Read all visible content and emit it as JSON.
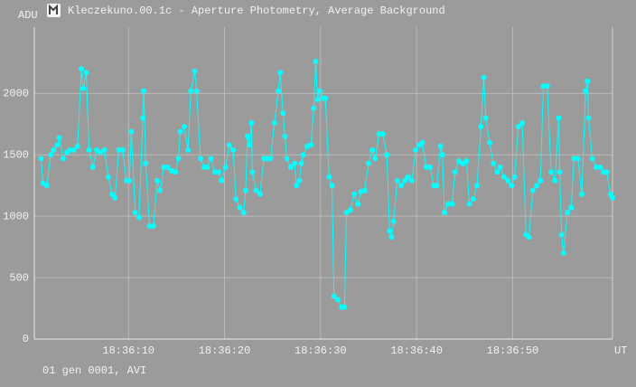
{
  "window_title": "Kleczekuno.00.1c - Aperture Photometry, Average Background",
  "footer": "01 gen 0001, AVI",
  "chart_data": {
    "type": "line",
    "y_label": "ADU",
    "x_label": "UT",
    "color": "#00ffff",
    "grid": true,
    "markers": true,
    "xlim": [
      0.2,
      60.4
    ],
    "ylim": [
      0,
      2540
    ],
    "xticks": [
      {
        "value": 10,
        "label": "18:36:10"
      },
      {
        "value": 20,
        "label": "18:36:20"
      },
      {
        "value": 30,
        "label": "18:36:30"
      },
      {
        "value": 40,
        "label": "18:36:40"
      },
      {
        "value": 50,
        "label": "18:36:50"
      }
    ],
    "yticks": [
      0,
      500,
      1000,
      1500,
      2000
    ],
    "x": [
      0.9,
      1.1,
      1.5,
      1.9,
      2.2,
      2.6,
      2.8,
      3.2,
      3.6,
      3.9,
      4.3,
      4.7,
      5.1,
      5.3,
      5.6,
      5.9,
      6.3,
      6.7,
      7.1,
      7.5,
      7.9,
      8.3,
      8.6,
      9.0,
      9.4,
      9.8,
      10.1,
      10.3,
      10.7,
      11.1,
      11.5,
      11.6,
      11.8,
      12.2,
      12.6,
      13.0,
      13.3,
      13.7,
      14.1,
      14.5,
      14.9,
      15.2,
      15.4,
      15.8,
      16.2,
      16.5,
      16.9,
      17.1,
      17.5,
      17.9,
      18.2,
      18.6,
      19.0,
      19.4,
      19.7,
      20.1,
      20.5,
      20.9,
      21.2,
      21.6,
      22.0,
      22.2,
      22.4,
      22.6,
      22.8,
      22.9,
      23.3,
      23.7,
      24.1,
      24.4,
      24.8,
      25.2,
      25.6,
      25.8,
      26.1,
      26.3,
      26.5,
      26.9,
      27.3,
      27.5,
      27.8,
      28.0,
      28.2,
      28.6,
      29.0,
      29.3,
      29.5,
      29.7,
      29.9,
      30.3,
      30.5,
      30.9,
      31.2,
      31.4,
      31.8,
      32.2,
      32.5,
      32.7,
      33.1,
      33.5,
      33.9,
      34.2,
      34.6,
      35.0,
      35.4,
      35.7,
      36.1,
      36.5,
      36.9,
      37.2,
      37.4,
      37.6,
      38.0,
      38.4,
      38.8,
      39.1,
      39.5,
      39.9,
      40.3,
      40.6,
      41.0,
      41.4,
      41.8,
      42.1,
      42.5,
      42.7,
      42.9,
      43.3,
      43.7,
      44.0,
      44.4,
      44.8,
      45.2,
      45.5,
      45.9,
      46.3,
      46.7,
      47.0,
      47.2,
      47.6,
      48.0,
      48.4,
      48.7,
      49.1,
      49.5,
      49.9,
      50.2,
      50.6,
      51.0,
      51.4,
      51.7,
      52.1,
      52.5,
      52.9,
      53.2,
      53.6,
      54.0,
      54.4,
      54.8,
      54.9,
      55.1,
      55.3,
      55.7,
      56.1,
      56.4,
      56.8,
      57.2,
      57.6,
      57.8,
      57.9,
      58.3,
      58.7,
      59.1,
      59.5,
      59.8,
      60.2,
      60.4
    ],
    "values": [
      1470,
      1270,
      1250,
      1500,
      1540,
      1580,
      1640,
      1470,
      1520,
      1540,
      1540,
      1570,
      2200,
      2040,
      2170,
      1540,
      1400,
      1540,
      1520,
      1540,
      1320,
      1180,
      1150,
      1540,
      1540,
      1290,
      1290,
      1690,
      1030,
      990,
      1800,
      2020,
      1430,
      920,
      920,
      1290,
      1210,
      1400,
      1400,
      1370,
      1360,
      1470,
      1690,
      1730,
      1540,
      2020,
      2180,
      2020,
      1470,
      1400,
      1400,
      1470,
      1360,
      1360,
      1290,
      1400,
      1580,
      1540,
      1140,
      1070,
      1030,
      1210,
      1650,
      1580,
      1760,
      1360,
      1210,
      1180,
      1470,
      1470,
      1470,
      1760,
      2020,
      2170,
      1840,
      1650,
      1470,
      1400,
      1430,
      1250,
      1290,
      1430,
      1500,
      1570,
      1580,
      1880,
      2260,
      1950,
      2020,
      1960,
      1960,
      1320,
      1250,
      350,
      320,
      260,
      260,
      1030,
      1050,
      1180,
      1100,
      1200,
      1210,
      1430,
      1540,
      1470,
      1670,
      1670,
      1500,
      880,
      830,
      960,
      1290,
      1250,
      1290,
      1320,
      1290,
      1540,
      1580,
      1600,
      1400,
      1400,
      1250,
      1250,
      1570,
      1500,
      1030,
      1100,
      1100,
      1360,
      1450,
      1430,
      1450,
      1100,
      1140,
      1250,
      1730,
      2130,
      1800,
      1600,
      1430,
      1360,
      1400,
      1320,
      1290,
      1250,
      1320,
      1730,
      1760,
      850,
      830,
      1210,
      1250,
      1290,
      2060,
      2060,
      1360,
      1290,
      1800,
      1360,
      850,
      700,
      1030,
      1070,
      1470,
      1470,
      1180,
      2020,
      2100,
      1800,
      1470,
      1400,
      1400,
      1360,
      1360,
      1180,
      1150
    ]
  }
}
